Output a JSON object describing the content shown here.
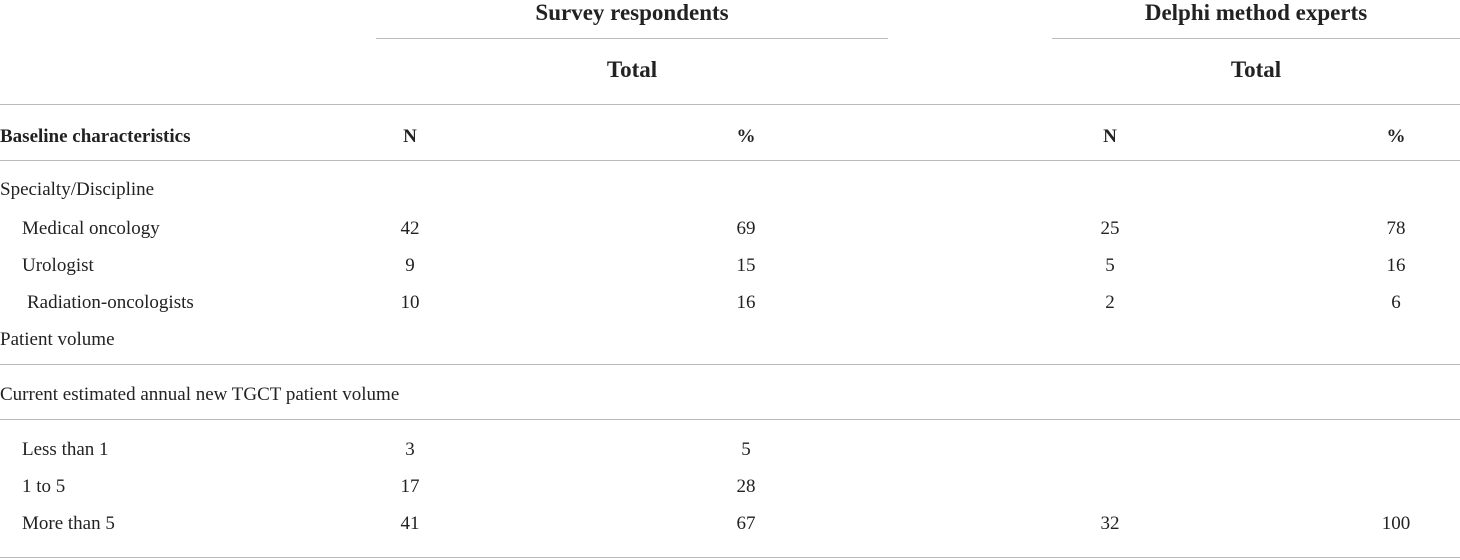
{
  "table": {
    "groups": [
      {
        "title": "Survey respondents",
        "subtitle": "Total"
      },
      {
        "title": "Delphi method experts",
        "subtitle": "Total"
      }
    ],
    "columns": [
      "Baseline characteristics",
      "N",
      "%",
      "N",
      "%"
    ],
    "rows": [
      {
        "label": "Specialty/Discipline"
      },
      {
        "label": "Medical oncology",
        "values": [
          42,
          69,
          25,
          78
        ]
      },
      {
        "label": "Urologist",
        "values": [
          9,
          15,
          5,
          16
        ]
      },
      {
        "label": "Radiation-oncologists",
        "values": [
          10,
          16,
          2,
          6
        ]
      },
      {
        "label": "Patient volume"
      },
      {
        "label": "Current estimated annual new TGCT patient volume"
      },
      {
        "label": "Less than 1",
        "values": [
          3,
          5,
          null,
          null
        ]
      },
      {
        "label": "1 to 5",
        "values": [
          17,
          28,
          null,
          null
        ]
      },
      {
        "label": "More than 5",
        "values": [
          41,
          67,
          32,
          100
        ]
      }
    ]
  }
}
